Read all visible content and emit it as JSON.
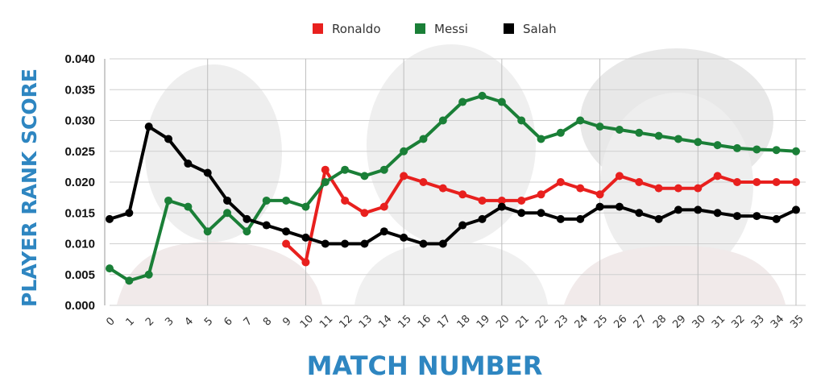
{
  "chart_data": {
    "type": "line",
    "xlabel": "MATCH NUMBER",
    "ylabel": "PLAYER RANK SCORE",
    "x": [
      "0",
      "1",
      "2",
      "3",
      "4",
      "5",
      "6",
      "7",
      "8",
      "9",
      "10",
      "11",
      "12",
      "13",
      "14",
      "15",
      "16",
      "17",
      "18",
      "19",
      "20",
      "21",
      "22",
      "23",
      "24",
      "25",
      "26",
      "27",
      "28",
      "29",
      "30",
      "31",
      "32",
      "33",
      "34",
      "35"
    ],
    "ylim": [
      0,
      0.04
    ],
    "yticks": [
      "0.000",
      "0.005",
      "0.010",
      "0.015",
      "0.020",
      "0.025",
      "0.030",
      "0.035",
      "0.040"
    ],
    "grid": true,
    "legend_position": "top-center",
    "series": [
      {
        "name": "Ronaldo",
        "color": "#e8201e",
        "values": [
          null,
          null,
          null,
          null,
          null,
          null,
          null,
          null,
          null,
          0.01,
          0.007,
          0.022,
          0.017,
          0.015,
          0.016,
          0.021,
          0.02,
          0.019,
          0.018,
          0.017,
          0.017,
          0.017,
          0.018,
          0.02,
          0.019,
          0.018,
          0.021,
          0.02,
          0.019,
          0.019,
          0.019,
          0.021,
          0.02,
          0.02,
          0.02,
          0.02
        ]
      },
      {
        "name": "Messi",
        "color": "#1a7f37",
        "values": [
          0.006,
          0.004,
          0.005,
          0.017,
          0.016,
          0.012,
          0.015,
          0.012,
          0.017,
          0.017,
          0.016,
          0.02,
          0.022,
          0.021,
          0.022,
          0.025,
          0.027,
          0.03,
          0.033,
          0.034,
          0.033,
          0.03,
          0.027,
          0.028,
          0.03,
          0.029,
          0.0285,
          0.028,
          0.0275,
          0.027,
          0.0265,
          0.026,
          0.0255,
          0.0253,
          0.0252,
          0.025
        ]
      },
      {
        "name": "Salah",
        "color": "#000000",
        "values": [
          0.014,
          0.015,
          0.029,
          0.027,
          0.023,
          0.0215,
          0.017,
          0.014,
          0.013,
          0.012,
          0.011,
          0.01,
          0.01,
          0.01,
          0.012,
          0.011,
          0.01,
          0.01,
          0.013,
          0.014,
          0.016,
          0.015,
          0.015,
          0.014,
          0.014,
          0.016,
          0.016,
          0.015,
          0.014,
          0.0155,
          0.0155,
          0.015,
          0.0145,
          0.0145,
          0.014,
          0.0155
        ]
      }
    ]
  }
}
